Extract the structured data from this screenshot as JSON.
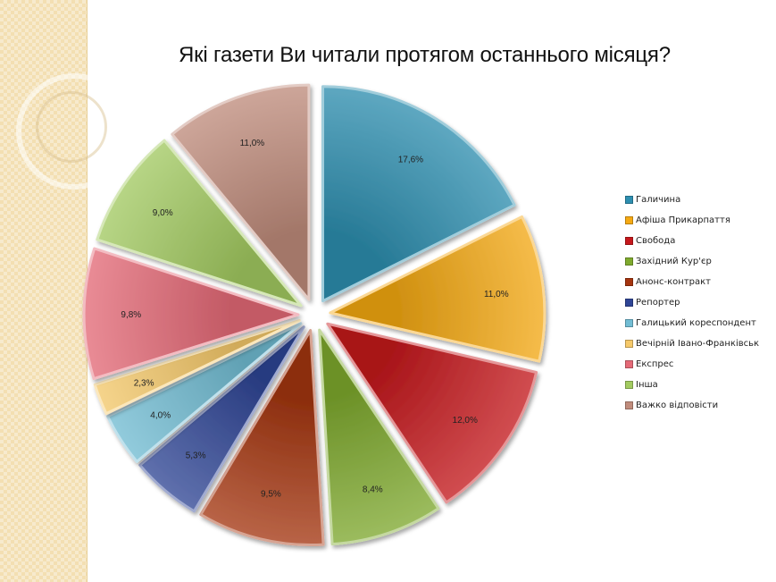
{
  "chart_data": {
    "type": "pie",
    "title": "Які газети Ви читали протягом останнього місяця?",
    "categories": [
      "Галичина",
      "Афіша Прикарпаття",
      "Свобода",
      "Західний Кур'єр",
      "Анонс-контракт",
      "Репортер",
      "Галицький кореспондент",
      "Вечірній Івано-Франківськ",
      "Експрес",
      "Інша",
      "Важко відповісти"
    ],
    "values": [
      17.6,
      11.0,
      12.0,
      8.4,
      9.5,
      5.3,
      4.0,
      2.3,
      9.8,
      9.0,
      11.0
    ],
    "data_labels": [
      "17,6%",
      "11,0%",
      "12,0%",
      "8,4%",
      "9,5%",
      "5,3%",
      "4,0%",
      "2,3%",
      "9,8%",
      "9,0%",
      "11,0%"
    ],
    "colors": [
      "#2e8fb0",
      "#f5a913",
      "#c6181c",
      "#7faa2e",
      "#a5350f",
      "#2f4596",
      "#72bdd4",
      "#f6c96a",
      "#e56a77",
      "#a3cb61",
      "#c08c7c"
    ],
    "legend_position": "right",
    "exploded": true
  }
}
